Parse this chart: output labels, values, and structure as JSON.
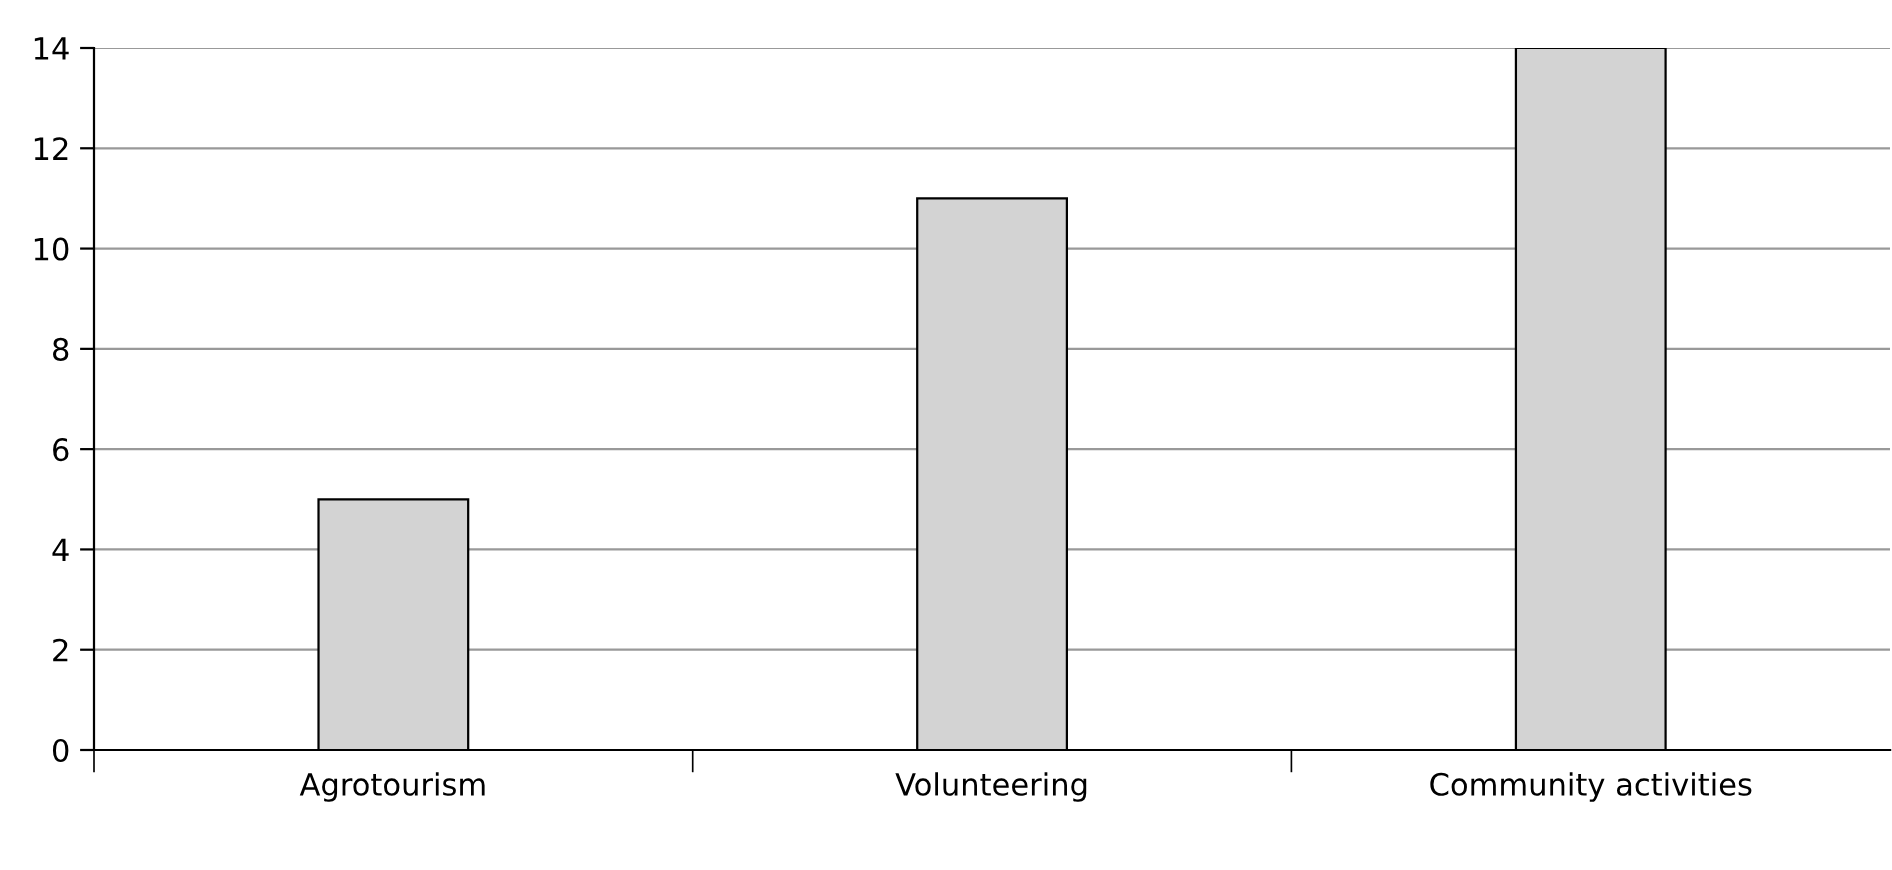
{
  "chart_data": {
    "type": "bar",
    "categories": [
      "Agrotourism",
      "Volunteering",
      "Community activities"
    ],
    "values": [
      5,
      11,
      14
    ],
    "color": "#d3d3d3",
    "ylim": [
      0,
      14
    ],
    "yticks": [
      0,
      2,
      4,
      6,
      8,
      10,
      12,
      14
    ],
    "grid": "y"
  }
}
